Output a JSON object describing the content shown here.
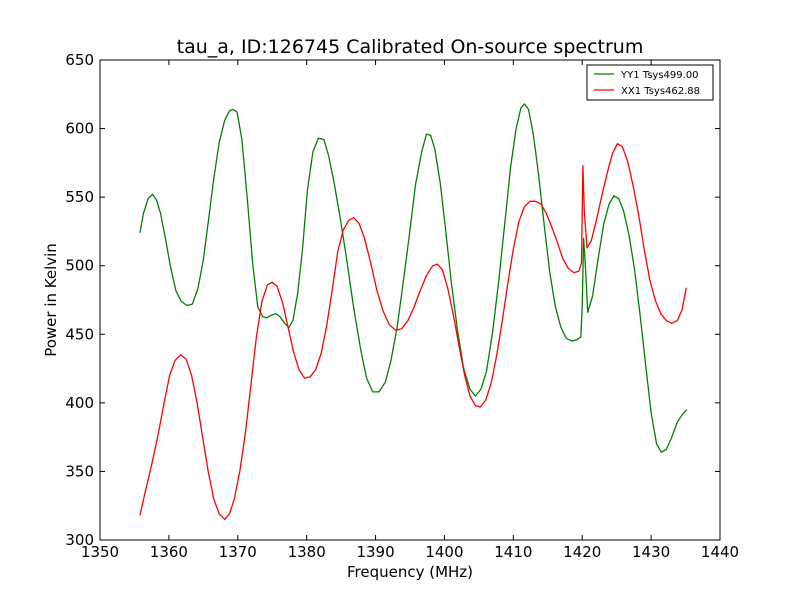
{
  "chart_data": {
    "type": "line",
    "title": "tau_a, ID:126745 Calibrated On-source spectrum",
    "xlabel": "Frequency (MHz)",
    "ylabel": "Power in Kelvin",
    "xlim": [
      1350,
      1440
    ],
    "ylim": [
      300,
      650
    ],
    "xticks": [
      1350,
      1360,
      1370,
      1380,
      1390,
      1400,
      1410,
      1420,
      1430,
      1440
    ],
    "yticks": [
      300,
      350,
      400,
      450,
      500,
      550,
      600,
      650
    ],
    "grid": false,
    "legend_position": "top-right",
    "series": [
      {
        "name": "YY1 Tsys499.00",
        "color": "#008000",
        "points": [
          [
            1355.8,
            524
          ],
          [
            1356.3,
            538
          ],
          [
            1357.0,
            549
          ],
          [
            1357.6,
            552
          ],
          [
            1358.2,
            548
          ],
          [
            1358.8,
            538
          ],
          [
            1359.5,
            520
          ],
          [
            1360.2,
            500
          ],
          [
            1361.0,
            482
          ],
          [
            1361.8,
            474
          ],
          [
            1362.6,
            471
          ],
          [
            1363.4,
            472
          ],
          [
            1364.2,
            483
          ],
          [
            1365.0,
            504
          ],
          [
            1365.8,
            535
          ],
          [
            1366.5,
            563
          ],
          [
            1367.3,
            590
          ],
          [
            1368.1,
            606
          ],
          [
            1368.8,
            613
          ],
          [
            1369.3,
            614
          ],
          [
            1369.9,
            612
          ],
          [
            1370.6,
            592
          ],
          [
            1371.4,
            548
          ],
          [
            1372.2,
            500
          ],
          [
            1372.9,
            470
          ],
          [
            1373.6,
            463
          ],
          [
            1374.2,
            462
          ],
          [
            1374.9,
            464
          ],
          [
            1375.5,
            465
          ],
          [
            1376.1,
            463
          ],
          [
            1376.8,
            458
          ],
          [
            1377.4,
            455
          ],
          [
            1378.0,
            460
          ],
          [
            1378.7,
            480
          ],
          [
            1379.4,
            512
          ],
          [
            1380.1,
            555
          ],
          [
            1380.9,
            583
          ],
          [
            1381.7,
            593
          ],
          [
            1382.5,
            592
          ],
          [
            1383.2,
            580
          ],
          [
            1384.0,
            560
          ],
          [
            1384.9,
            534
          ],
          [
            1385.8,
            505
          ],
          [
            1386.8,
            470
          ],
          [
            1387.8,
            440
          ],
          [
            1388.7,
            418
          ],
          [
            1389.6,
            408
          ],
          [
            1390.5,
            408
          ],
          [
            1391.4,
            415
          ],
          [
            1392.2,
            430
          ],
          [
            1393.1,
            454
          ],
          [
            1394.0,
            487
          ],
          [
            1394.9,
            522
          ],
          [
            1395.8,
            559
          ],
          [
            1396.7,
            583
          ],
          [
            1397.4,
            596
          ],
          [
            1398.0,
            595
          ],
          [
            1398.6,
            585
          ],
          [
            1399.4,
            560
          ],
          [
            1400.2,
            525
          ],
          [
            1401.0,
            488
          ],
          [
            1401.9,
            453
          ],
          [
            1402.8,
            425
          ],
          [
            1403.7,
            410
          ],
          [
            1404.5,
            405
          ],
          [
            1405.3,
            410
          ],
          [
            1406.1,
            423
          ],
          [
            1407.0,
            452
          ],
          [
            1407.9,
            490
          ],
          [
            1408.8,
            533
          ],
          [
            1409.6,
            572
          ],
          [
            1410.4,
            600
          ],
          [
            1411.1,
            615
          ],
          [
            1411.6,
            618
          ],
          [
            1412.2,
            614
          ],
          [
            1412.9,
            596
          ],
          [
            1413.7,
            565
          ],
          [
            1414.5,
            529
          ],
          [
            1415.3,
            495
          ],
          [
            1416.1,
            470
          ],
          [
            1416.9,
            455
          ],
          [
            1417.7,
            447
          ],
          [
            1418.5,
            445
          ],
          [
            1419.2,
            446
          ],
          [
            1419.8,
            448
          ],
          [
            1420.0,
            470
          ],
          [
            1420.2,
            520
          ],
          [
            1420.5,
            496
          ],
          [
            1420.8,
            466
          ],
          [
            1421.5,
            478
          ],
          [
            1422.3,
            505
          ],
          [
            1423.1,
            530
          ],
          [
            1423.9,
            545
          ],
          [
            1424.6,
            551
          ],
          [
            1425.3,
            549
          ],
          [
            1426.0,
            540
          ],
          [
            1426.8,
            522
          ],
          [
            1427.6,
            497
          ],
          [
            1428.4,
            464
          ],
          [
            1429.2,
            428
          ],
          [
            1430.0,
            393
          ],
          [
            1430.8,
            370
          ],
          [
            1431.5,
            364
          ],
          [
            1432.2,
            366
          ],
          [
            1433.0,
            375
          ],
          [
            1433.8,
            386
          ],
          [
            1434.6,
            392
          ],
          [
            1435.2,
            395
          ]
        ]
      },
      {
        "name": "XX1 Tsys462.88",
        "color": "#ff0000",
        "points": [
          [
            1355.8,
            318
          ],
          [
            1356.6,
            336
          ],
          [
            1357.5,
            355
          ],
          [
            1358.4,
            376
          ],
          [
            1359.3,
            400
          ],
          [
            1360.1,
            420
          ],
          [
            1360.9,
            431
          ],
          [
            1361.7,
            435
          ],
          [
            1362.5,
            432
          ],
          [
            1363.3,
            420
          ],
          [
            1364.1,
            400
          ],
          [
            1364.9,
            375
          ],
          [
            1365.7,
            350
          ],
          [
            1366.5,
            330
          ],
          [
            1367.3,
            319
          ],
          [
            1368.1,
            315
          ],
          [
            1368.8,
            319
          ],
          [
            1369.5,
            330
          ],
          [
            1370.3,
            350
          ],
          [
            1371.1,
            378
          ],
          [
            1371.9,
            413
          ],
          [
            1372.7,
            448
          ],
          [
            1373.5,
            474
          ],
          [
            1374.3,
            486
          ],
          [
            1375.0,
            488
          ],
          [
            1375.7,
            485
          ],
          [
            1376.5,
            473
          ],
          [
            1377.3,
            455
          ],
          [
            1378.1,
            437
          ],
          [
            1378.9,
            424
          ],
          [
            1379.7,
            418
          ],
          [
            1380.5,
            419
          ],
          [
            1381.3,
            424
          ],
          [
            1382.1,
            436
          ],
          [
            1382.9,
            456
          ],
          [
            1383.7,
            482
          ],
          [
            1384.5,
            510
          ],
          [
            1385.3,
            526
          ],
          [
            1386.1,
            533
          ],
          [
            1386.8,
            535
          ],
          [
            1387.6,
            531
          ],
          [
            1388.4,
            520
          ],
          [
            1389.3,
            502
          ],
          [
            1390.2,
            482
          ],
          [
            1391.1,
            467
          ],
          [
            1392.0,
            457
          ],
          [
            1392.9,
            453
          ],
          [
            1393.8,
            454
          ],
          [
            1394.7,
            460
          ],
          [
            1395.6,
            470
          ],
          [
            1396.5,
            482
          ],
          [
            1397.4,
            493
          ],
          [
            1398.3,
            500
          ],
          [
            1399.0,
            501
          ],
          [
            1399.7,
            497
          ],
          [
            1400.5,
            483
          ],
          [
            1401.3,
            464
          ],
          [
            1402.1,
            442
          ],
          [
            1402.9,
            421
          ],
          [
            1403.7,
            405
          ],
          [
            1404.5,
            398
          ],
          [
            1405.2,
            397
          ],
          [
            1406.0,
            402
          ],
          [
            1406.8,
            415
          ],
          [
            1407.6,
            435
          ],
          [
            1408.4,
            460
          ],
          [
            1409.2,
            487
          ],
          [
            1410.0,
            512
          ],
          [
            1410.8,
            532
          ],
          [
            1411.6,
            543
          ],
          [
            1412.4,
            547
          ],
          [
            1413.2,
            547
          ],
          [
            1414.0,
            545
          ],
          [
            1414.8,
            538
          ],
          [
            1415.6,
            528
          ],
          [
            1416.4,
            517
          ],
          [
            1417.2,
            505
          ],
          [
            1418.0,
            498
          ],
          [
            1418.8,
            495
          ],
          [
            1419.5,
            496
          ],
          [
            1419.9,
            502
          ],
          [
            1420.1,
            573
          ],
          [
            1420.3,
            540
          ],
          [
            1420.7,
            513
          ],
          [
            1421.3,
            518
          ],
          [
            1422.0,
            532
          ],
          [
            1422.8,
            550
          ],
          [
            1423.6,
            567
          ],
          [
            1424.4,
            582
          ],
          [
            1425.1,
            589
          ],
          [
            1425.8,
            587
          ],
          [
            1426.6,
            576
          ],
          [
            1427.4,
            558
          ],
          [
            1428.2,
            537
          ],
          [
            1429.0,
            512
          ],
          [
            1429.8,
            490
          ],
          [
            1430.6,
            475
          ],
          [
            1431.4,
            465
          ],
          [
            1432.2,
            460
          ],
          [
            1433.0,
            458
          ],
          [
            1433.8,
            460
          ],
          [
            1434.5,
            468
          ],
          [
            1435.1,
            484
          ]
        ]
      }
    ]
  }
}
